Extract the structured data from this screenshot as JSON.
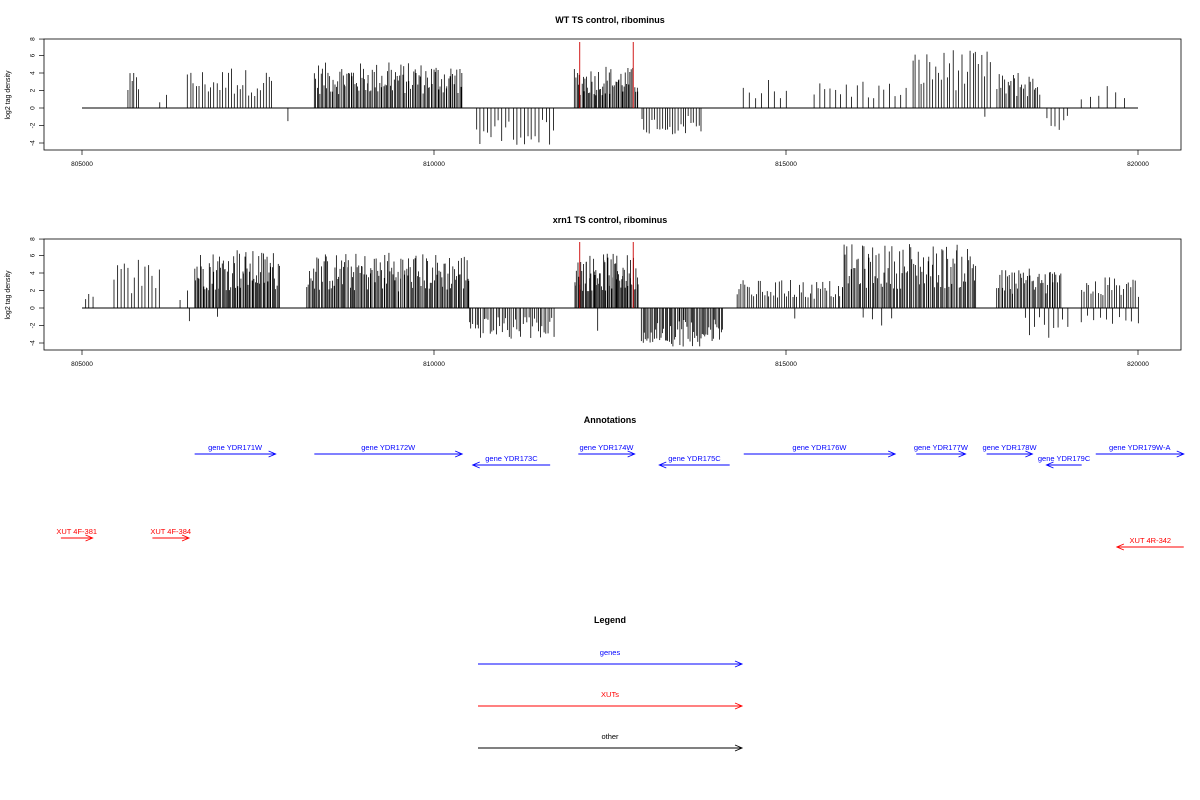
{
  "colors": {
    "genes": "#0000ff",
    "xuts": "#ff0000",
    "other": "#000000",
    "marker": "#cc0000"
  },
  "chart_data": [
    {
      "type": "bar",
      "title": "WT TS control, ribominus",
      "ylabel": "log2 tag density",
      "xlabel": "",
      "xlim": [
        805000,
        820000
      ],
      "ylim": [
        -4,
        8
      ],
      "xticks": [
        "805000",
        "810000",
        "815000",
        "820000"
      ],
      "yticks": [
        "-4",
        "-2",
        "0",
        "2",
        "4",
        "6",
        "8"
      ],
      "markers": [
        812070,
        812830
      ],
      "regions": [
        {
          "start": 805650,
          "end": 805800,
          "pos": true,
          "max": 4.0,
          "n": 6
        },
        {
          "start": 806100,
          "end": 806200,
          "pos": true,
          "max": 1.5,
          "n": 2
        },
        {
          "start": 806500,
          "end": 807700,
          "pos": true,
          "max": 4.5,
          "n": 30
        },
        {
          "start": 807900,
          "end": 807950,
          "pos": false,
          "max": 1.5,
          "n": 1
        },
        {
          "start": 808300,
          "end": 810400,
          "pos": true,
          "max": 5.2,
          "n": 110
        },
        {
          "start": 810600,
          "end": 811700,
          "pos": false,
          "max": 4.2,
          "n": 22
        },
        {
          "start": 812000,
          "end": 812900,
          "pos": true,
          "max": 4.7,
          "n": 55
        },
        {
          "start": 812950,
          "end": 813800,
          "pos": false,
          "max": 3.0,
          "n": 24
        },
        {
          "start": 814400,
          "end": 815000,
          "pos": true,
          "max": 3.2,
          "n": 8
        },
        {
          "start": 815400,
          "end": 816700,
          "pos": true,
          "max": 3.0,
          "n": 18
        },
        {
          "start": 816800,
          "end": 817900,
          "pos": true,
          "max": 6.6,
          "n": 28
        },
        {
          "start": 817800,
          "end": 817850,
          "pos": false,
          "max": 1.0,
          "n": 1
        },
        {
          "start": 818000,
          "end": 818600,
          "pos": true,
          "max": 4.0,
          "n": 25
        },
        {
          "start": 818700,
          "end": 819000,
          "pos": false,
          "max": 2.5,
          "n": 6
        },
        {
          "start": 819200,
          "end": 819800,
          "pos": true,
          "max": 2.5,
          "n": 6
        }
      ]
    },
    {
      "type": "bar",
      "title": "xrn1 TS control, ribominus",
      "ylabel": "log2 tag density",
      "xlabel": "",
      "xlim": [
        805000,
        820000
      ],
      "ylim": [
        -4,
        8
      ],
      "xticks": [
        "805000",
        "810000",
        "815000",
        "820000"
      ],
      "yticks": [
        "-4",
        "-2",
        "0",
        "2",
        "4",
        "6",
        "8"
      ],
      "markers": [
        812070,
        812830
      ],
      "regions": [
        {
          "start": 805050,
          "end": 805150,
          "pos": true,
          "max": 1.6,
          "n": 3
        },
        {
          "start": 805450,
          "end": 806100,
          "pos": true,
          "max": 5.5,
          "n": 14
        },
        {
          "start": 806400,
          "end": 806500,
          "pos": true,
          "max": 2.0,
          "n": 2
        },
        {
          "start": 806500,
          "end": 806550,
          "pos": false,
          "max": 1.5,
          "n": 1
        },
        {
          "start": 806600,
          "end": 807800,
          "pos": true,
          "max": 6.6,
          "n": 75
        },
        {
          "start": 806900,
          "end": 806950,
          "pos": false,
          "max": 1.0,
          "n": 1
        },
        {
          "start": 808200,
          "end": 810500,
          "pos": true,
          "max": 6.3,
          "n": 130
        },
        {
          "start": 810500,
          "end": 811700,
          "pos": false,
          "max": 3.5,
          "n": 45
        },
        {
          "start": 812000,
          "end": 812900,
          "pos": true,
          "max": 6.2,
          "n": 70
        },
        {
          "start": 812300,
          "end": 812350,
          "pos": false,
          "max": 2.6,
          "n": 1
        },
        {
          "start": 812950,
          "end": 814100,
          "pos": false,
          "max": 4.4,
          "n": 60
        },
        {
          "start": 814300,
          "end": 815800,
          "pos": true,
          "max": 3.2,
          "n": 50
        },
        {
          "start": 815100,
          "end": 815150,
          "pos": false,
          "max": 1.2,
          "n": 1
        },
        {
          "start": 815800,
          "end": 817700,
          "pos": true,
          "max": 7.3,
          "n": 95
        },
        {
          "start": 816100,
          "end": 816500,
          "pos": false,
          "max": 2.0,
          "n": 4
        },
        {
          "start": 818000,
          "end": 818900,
          "pos": true,
          "max": 4.5,
          "n": 45
        },
        {
          "start": 818400,
          "end": 819000,
          "pos": false,
          "max": 3.4,
          "n": 10
        },
        {
          "start": 819200,
          "end": 820000,
          "pos": true,
          "max": 3.5,
          "n": 25
        },
        {
          "start": 819200,
          "end": 820000,
          "pos": false,
          "max": 1.8,
          "n": 10
        }
      ]
    },
    {
      "type": "annotation",
      "title": "Annotations",
      "xlim": [
        805000,
        820000
      ],
      "features": [
        {
          "name": "gene YDR171W",
          "kind": "genes",
          "start": 806600,
          "end": 807750,
          "strand": "+",
          "row": 0
        },
        {
          "name": "gene YDR172W",
          "kind": "genes",
          "start": 808300,
          "end": 810400,
          "strand": "+",
          "row": 0
        },
        {
          "name": "gene YDR173C",
          "kind": "genes",
          "start": 810550,
          "end": 811650,
          "strand": "-",
          "row": 1
        },
        {
          "name": "gene YDR174W",
          "kind": "genes",
          "start": 812050,
          "end": 812850,
          "strand": "+",
          "row": 0
        },
        {
          "name": "gene YDR175C",
          "kind": "genes",
          "start": 813200,
          "end": 814200,
          "strand": "-",
          "row": 1
        },
        {
          "name": "gene YDR176W",
          "kind": "genes",
          "start": 814400,
          "end": 816550,
          "strand": "+",
          "row": 0
        },
        {
          "name": "gene YDR177W",
          "kind": "genes",
          "start": 816850,
          "end": 817550,
          "strand": "+",
          "row": 0
        },
        {
          "name": "gene YDR178W",
          "kind": "genes",
          "start": 817850,
          "end": 818500,
          "strand": "+",
          "row": 0
        },
        {
          "name": "gene YDR179C",
          "kind": "genes",
          "start": 818700,
          "end": 819200,
          "strand": "-",
          "row": 1
        },
        {
          "name": "gene YDR179W-A",
          "kind": "genes",
          "start": 819400,
          "end": 820650,
          "strand": "+",
          "row": 0
        },
        {
          "name": "XUT 4F-381",
          "kind": "xuts",
          "start": 804700,
          "end": 805150,
          "strand": "+",
          "row": 2
        },
        {
          "name": "XUT 4F-384",
          "kind": "xuts",
          "start": 806000,
          "end": 806520,
          "strand": "+",
          "row": 2
        },
        {
          "name": "XUT 4R-342",
          "kind": "xuts",
          "start": 819700,
          "end": 820650,
          "strand": "-",
          "row": 3
        }
      ]
    }
  ],
  "legend": {
    "title": "Legend",
    "entries": [
      {
        "label": "genes",
        "kind": "genes"
      },
      {
        "label": "XUTs",
        "kind": "xuts"
      },
      {
        "label": "other",
        "kind": "other"
      }
    ]
  }
}
